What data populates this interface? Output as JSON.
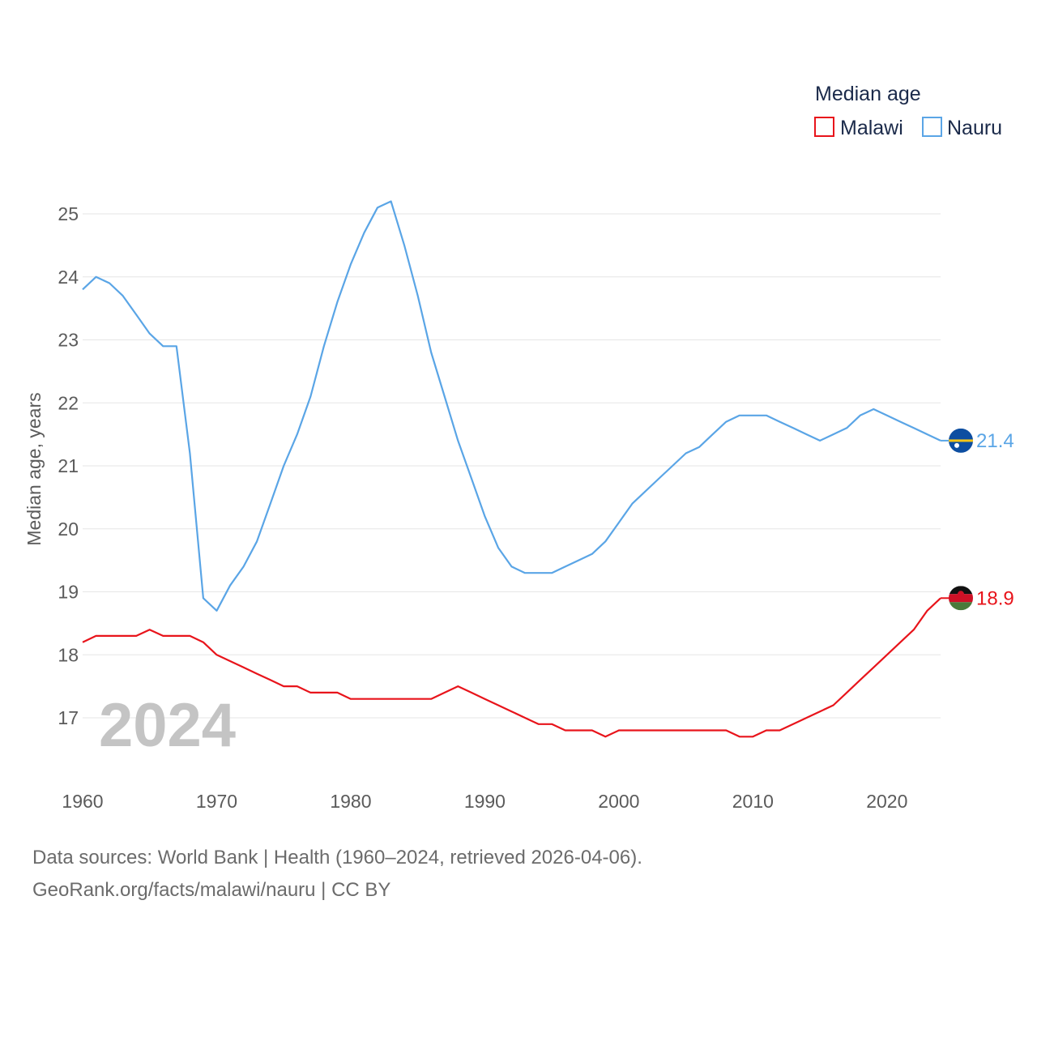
{
  "chart_data": {
    "type": "line",
    "legend_title": "Median age",
    "ylabel": "Median age, years",
    "xlabel": "",
    "ylim": [
      16,
      25.5
    ],
    "xlim": [
      1960,
      2024
    ],
    "yticks": [
      17,
      18,
      19,
      20,
      21,
      22,
      23,
      24,
      25
    ],
    "xticks": [
      1960,
      1970,
      1980,
      1990,
      2000,
      2010,
      2020
    ],
    "grid": true,
    "legend_position": "top-right",
    "year_label": "2024",
    "x": [
      1960,
      1961,
      1962,
      1963,
      1964,
      1965,
      1966,
      1967,
      1968,
      1969,
      1970,
      1971,
      1972,
      1973,
      1974,
      1975,
      1976,
      1977,
      1978,
      1979,
      1980,
      1981,
      1982,
      1983,
      1984,
      1985,
      1986,
      1987,
      1988,
      1989,
      1990,
      1991,
      1992,
      1993,
      1994,
      1995,
      1996,
      1997,
      1998,
      1999,
      2000,
      2001,
      2002,
      2003,
      2004,
      2005,
      2006,
      2007,
      2008,
      2009,
      2010,
      2011,
      2012,
      2013,
      2014,
      2015,
      2016,
      2017,
      2018,
      2019,
      2020,
      2021,
      2022,
      2023,
      2024
    ],
    "series": [
      {
        "name": "Malawi",
        "color": "#e8141b",
        "end_label": "18.9",
        "flag": "malawi-flag",
        "values": [
          18.2,
          18.3,
          18.3,
          18.3,
          18.3,
          18.4,
          18.3,
          18.3,
          18.3,
          18.2,
          18.0,
          17.9,
          17.8,
          17.7,
          17.6,
          17.5,
          17.5,
          17.4,
          17.4,
          17.4,
          17.3,
          17.3,
          17.3,
          17.3,
          17.3,
          17.3,
          17.3,
          17.4,
          17.5,
          17.4,
          17.3,
          17.2,
          17.1,
          17.0,
          16.9,
          16.9,
          16.8,
          16.8,
          16.8,
          16.7,
          16.8,
          16.8,
          16.8,
          16.8,
          16.8,
          16.8,
          16.8,
          16.8,
          16.8,
          16.7,
          16.7,
          16.8,
          16.8,
          16.9,
          17.0,
          17.1,
          17.2,
          17.4,
          17.6,
          17.8,
          18.0,
          18.2,
          18.4,
          18.7,
          18.9
        ]
      },
      {
        "name": "Nauru",
        "color": "#5aa5e6",
        "end_label": "21.4",
        "flag": "nauru-flag",
        "values": [
          23.8,
          24.0,
          23.9,
          23.7,
          23.4,
          23.1,
          22.9,
          22.9,
          21.2,
          18.9,
          18.7,
          19.1,
          19.4,
          19.8,
          20.4,
          21.0,
          21.5,
          22.1,
          22.9,
          23.6,
          24.2,
          24.7,
          25.1,
          25.2,
          24.5,
          23.7,
          22.8,
          22.1,
          21.4,
          20.8,
          20.2,
          19.7,
          19.4,
          19.3,
          19.3,
          19.3,
          19.4,
          19.5,
          19.6,
          19.8,
          20.1,
          20.4,
          20.6,
          20.8,
          21.0,
          21.2,
          21.3,
          21.5,
          21.7,
          21.8,
          21.8,
          21.8,
          21.7,
          21.6,
          21.5,
          21.4,
          21.5,
          21.6,
          21.8,
          21.9,
          21.8,
          21.7,
          21.6,
          21.5,
          21.4
        ]
      }
    ]
  },
  "source": {
    "line1": "Data sources: World Bank | Health (1960–2024, retrieved 2026-04-06).",
    "line2": "GeoRank.org/facts/malawi/nauru | CC BY"
  }
}
